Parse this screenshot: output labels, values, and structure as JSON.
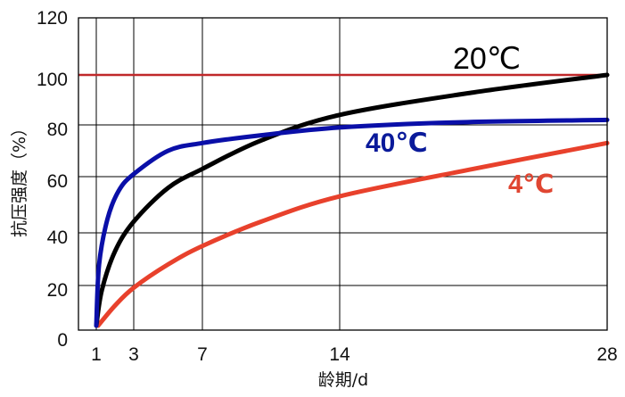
{
  "chart_data": {
    "type": "line",
    "xlabel": "龄期/d",
    "ylabel": "抗压强度（%）",
    "x_ticks": [
      1,
      3,
      7,
      14,
      28
    ],
    "y_ticks": [
      0,
      20,
      40,
      60,
      80,
      100,
      120
    ],
    "xlim": [
      0,
      28
    ],
    "ylim": [
      0,
      120
    ],
    "grid": true,
    "reference_line": {
      "y": 100,
      "color": "#c0282a"
    },
    "series": [
      {
        "name": "20℃",
        "color": "#000000",
        "points": [
          [
            1,
            2
          ],
          [
            1.3,
            18
          ],
          [
            2,
            33
          ],
          [
            3,
            44
          ],
          [
            5,
            56
          ],
          [
            7,
            63
          ],
          [
            10,
            74
          ],
          [
            14,
            84
          ],
          [
            21,
            93
          ],
          [
            28,
            100
          ]
        ]
      },
      {
        "name": "40℃",
        "color": "#0a0fa8",
        "points": [
          [
            1,
            2
          ],
          [
            1.15,
            28
          ],
          [
            1.6,
            45
          ],
          [
            2.2,
            55
          ],
          [
            3,
            61
          ],
          [
            5,
            70
          ],
          [
            7,
            73
          ],
          [
            10,
            76
          ],
          [
            14,
            79
          ],
          [
            20,
            81
          ],
          [
            28,
            82
          ]
        ]
      },
      {
        "name": "4℃",
        "color": "#e8412c",
        "points": [
          [
            1.1,
            2
          ],
          [
            2,
            11
          ],
          [
            3,
            19
          ],
          [
            5,
            28
          ],
          [
            7,
            35
          ],
          [
            10,
            44
          ],
          [
            14,
            53
          ],
          [
            21,
            63
          ],
          [
            28,
            73
          ]
        ]
      }
    ]
  }
}
